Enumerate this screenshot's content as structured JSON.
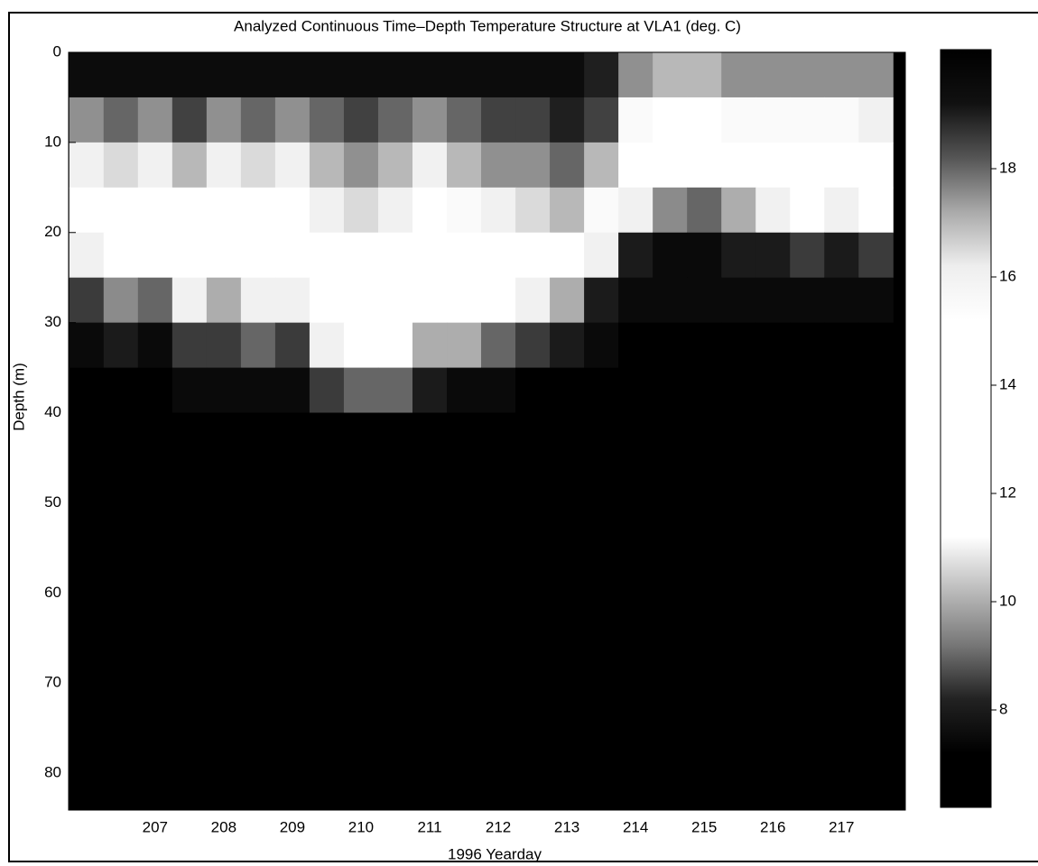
{
  "chart_data": {
    "type": "heatmap",
    "title": "Analyzed Continuous Time–Depth Temperature Structure at VLA1 (deg. C)",
    "x_label": "1996 Yearday",
    "y_label": "Depth (m)",
    "x": [
      206,
      206.5,
      207,
      207.5,
      208,
      208.5,
      209,
      209.5,
      210,
      210.5,
      211,
      211.5,
      212,
      212.5,
      213,
      213.5,
      214,
      214.5,
      215,
      215.5,
      216,
      216.5,
      217,
      217.5
    ],
    "y": [
      2.5,
      7.5,
      12.5,
      17.5,
      22.5,
      27.5,
      32.5,
      37.5,
      42.5,
      47.5,
      52.5,
      57.5,
      62.5,
      67.5,
      72.5,
      77.5,
      82.5
    ],
    "z": [
      [
        19.5,
        19.5,
        19.5,
        19.5,
        19.5,
        19.5,
        19.5,
        19.5,
        19.5,
        19.5,
        19.5,
        19.5,
        19.5,
        19.5,
        19.5,
        19,
        17.5,
        17,
        17,
        17.5,
        17.5,
        17.5,
        17.5,
        17.5
      ],
      [
        17.5,
        18,
        17.5,
        18.5,
        17.5,
        18,
        17.5,
        18,
        18.5,
        18,
        17.5,
        18,
        18.5,
        18.5,
        19,
        18.5,
        15.5,
        15,
        15,
        15.5,
        15.5,
        15.5,
        15.5,
        16
      ],
      [
        16,
        16.5,
        16,
        17,
        16,
        16.5,
        16,
        17,
        17.5,
        17,
        16,
        17,
        17.5,
        17.5,
        18,
        17,
        14.5,
        13.5,
        13.5,
        14,
        14.5,
        14.5,
        14.5,
        15
      ],
      [
        14,
        14.5,
        14,
        15,
        14,
        15,
        14.5,
        16,
        16.5,
        16,
        15,
        15.5,
        16,
        16.5,
        17,
        15.5,
        11,
        9.5,
        9,
        10,
        11,
        12,
        11,
        12
      ],
      [
        11,
        12.5,
        12,
        13.5,
        12,
        13,
        13,
        14.5,
        15,
        14.5,
        13.5,
        14.5,
        14.5,
        15,
        15,
        11,
        8,
        7.5,
        7.5,
        8,
        8,
        8.5,
        8,
        8.5
      ],
      [
        8.5,
        9.5,
        9,
        11,
        10,
        11,
        11,
        13,
        13.5,
        13,
        12,
        13,
        12,
        11,
        10,
        8,
        7.5,
        7.5,
        7.5,
        7.5,
        7.5,
        7.5,
        7.5,
        7.5
      ],
      [
        7.5,
        8,
        7.5,
        8.5,
        8.5,
        9,
        8.5,
        11,
        11.5,
        11.5,
        10,
        10,
        9,
        8.5,
        8,
        7.5,
        7.2,
        7.2,
        7.2,
        7.2,
        7.2,
        7.2,
        7.2,
        7.2
      ],
      [
        7.2,
        7.2,
        7.2,
        7.5,
        7.5,
        7.5,
        7.5,
        8.5,
        9,
        9,
        8,
        7.5,
        7.5,
        7.2,
        7.2,
        7.2,
        7,
        7,
        7,
        7,
        7,
        7,
        7,
        7
      ],
      [
        7,
        7,
        7,
        7,
        7,
        7,
        7,
        7,
        7,
        7,
        7,
        7,
        7,
        7,
        7,
        7,
        7,
        7,
        7,
        7,
        7,
        7,
        7,
        7
      ],
      [
        7,
        7,
        7,
        7,
        7,
        7,
        7,
        7,
        7,
        7,
        7,
        7,
        7,
        7,
        7,
        7,
        7,
        7,
        7,
        7,
        7,
        7,
        7,
        7
      ],
      [
        7,
        7,
        7,
        7,
        7,
        7,
        7,
        7,
        7,
        7,
        7,
        7,
        7,
        7,
        7,
        7,
        7,
        7,
        7,
        7,
        7,
        7,
        7,
        7
      ],
      [
        7,
        7,
        7,
        7,
        7,
        7,
        7,
        7,
        7,
        7,
        7,
        7,
        7,
        7,
        7,
        7,
        7,
        7,
        7,
        7,
        7,
        7,
        7,
        7
      ],
      [
        7,
        7,
        7,
        7,
        7,
        7,
        7,
        7,
        7,
        7,
        7,
        7,
        7,
        7,
        7,
        7,
        7,
        7,
        7,
        7,
        7,
        7,
        7,
        7
      ],
      [
        7,
        7,
        7,
        7,
        7,
        7,
        7,
        7,
        7,
        7,
        7,
        7,
        7,
        7,
        7,
        7,
        7,
        7,
        7,
        7,
        7,
        7,
        7,
        7
      ],
      [
        7,
        7,
        7,
        7,
        7,
        7,
        7,
        7,
        7,
        7,
        7,
        7,
        7,
        7,
        7,
        7,
        7,
        7,
        7,
        7,
        7,
        7,
        7,
        7
      ],
      [
        7,
        7,
        7,
        7,
        7,
        7,
        7,
        7,
        7,
        7,
        7,
        7,
        7,
        7,
        7,
        7,
        7,
        7,
        7,
        7,
        7,
        7,
        7,
        7
      ],
      [
        7,
        7,
        7,
        7,
        7,
        7,
        7,
        7,
        7,
        7,
        7,
        7,
        7,
        7,
        7,
        7,
        7,
        7,
        7,
        7,
        7,
        7,
        7,
        7
      ]
    ],
    "x_cell": 0.5,
    "y_cell": 5,
    "xlim": [
      205.74,
      217.93
    ],
    "ylim": [
      0,
      84.1
    ],
    "y_inverted": true,
    "xticks": [
      207,
      208,
      209,
      210,
      211,
      212,
      213,
      214,
      215,
      216,
      217
    ],
    "yticks": [
      0,
      10,
      20,
      30,
      40,
      50,
      60,
      70,
      80
    ],
    "zlim": [
      6.2,
      20.2
    ],
    "zticks": [
      8,
      10,
      12,
      14,
      16,
      18
    ],
    "colormap": [
      "#000000",
      "#000000",
      "#222222",
      "#777777",
      "#bbbbbb",
      "#ffffff",
      "#ffffff",
      "#ffffff",
      "#ffffff",
      "#ffffff",
      "#eeeeee",
      "#aaaaaa",
      "#555555",
      "#111111",
      "#000000"
    ]
  }
}
